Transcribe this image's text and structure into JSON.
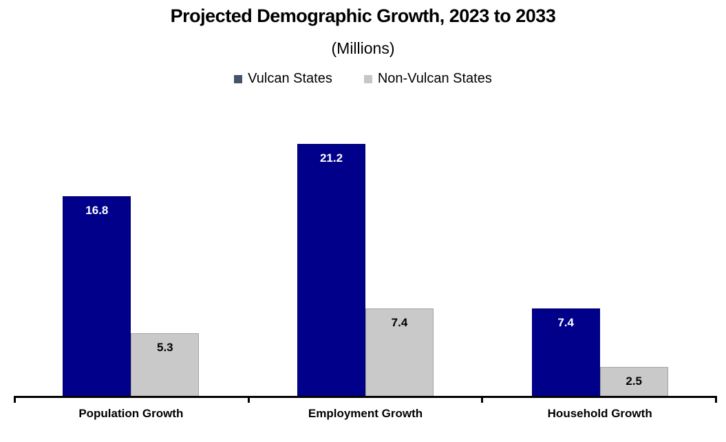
{
  "title": "Projected Demographic Growth, 2023 to 2033",
  "subtitle": "(Millions)",
  "legend": [
    {
      "label": "Vulcan States",
      "marker_color": "#44546A"
    },
    {
      "label": "Non-Vulcan States",
      "marker_color": "#C6C6C6"
    }
  ],
  "chart_data": {
    "type": "bar",
    "title": "Projected Demographic Growth, 2023 to 2033",
    "subtitle": "(Millions)",
    "categories": [
      "Population Growth",
      "Employment Growth",
      "Household Growth"
    ],
    "series": [
      {
        "name": "Vulcan States",
        "values": [
          16.8,
          21.2,
          7.4
        ],
        "color": "#00008B",
        "border_color": "#00006B",
        "label_color": "#FFFFFF"
      },
      {
        "name": "Non-Vulcan States",
        "values": [
          5.3,
          7.4,
          2.5
        ],
        "color": "#C9C9C9",
        "border_color": "#A3A3A3",
        "label_color": "#000000"
      }
    ],
    "xlabel": "",
    "ylabel": "",
    "ylim": [
      0,
      24
    ],
    "grid": false,
    "legend_position": "top",
    "data_labels": "inside-top",
    "axis_color": "#000000"
  }
}
